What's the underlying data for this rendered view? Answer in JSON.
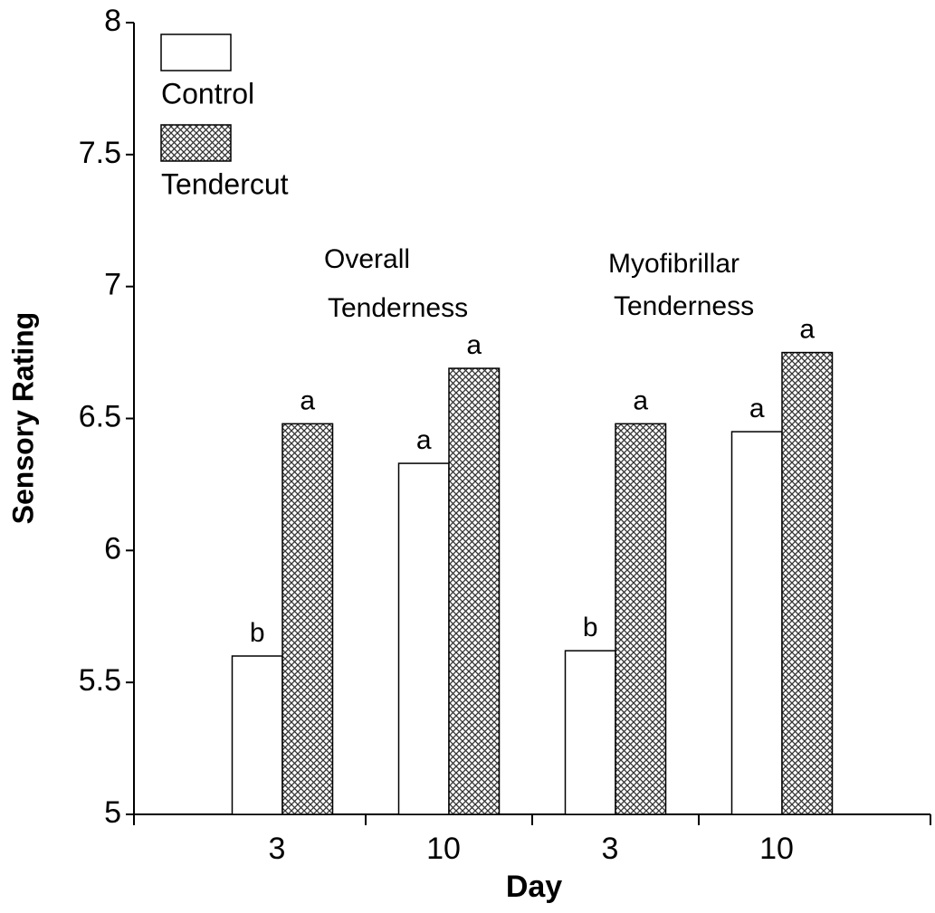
{
  "chart_data": {
    "type": "bar",
    "y_label": "Sensory Rating",
    "x_label": "Day",
    "categories": [
      "3",
      "10",
      "3",
      "10"
    ],
    "group_labels": [
      [
        "Overall",
        "Tenderness"
      ],
      [
        "Myofibrillar",
        "Tenderness"
      ]
    ],
    "series": [
      {
        "name": "Control",
        "color": "#ffffff",
        "pattern": "none",
        "values": [
          5.6,
          6.33,
          5.62,
          6.45
        ],
        "letters": [
          "b",
          "a",
          "b",
          "a"
        ]
      },
      {
        "name": "Tendercut",
        "color": "#ffffff",
        "pattern": "crosshatch",
        "values": [
          6.48,
          6.69,
          6.48,
          6.75
        ],
        "letters": [
          "a",
          "a",
          "a",
          "a"
        ]
      }
    ],
    "ylim": [
      5,
      8
    ],
    "yticks": [
      5,
      5.5,
      6,
      6.5,
      7,
      7.5,
      8
    ],
    "legend": "upper left"
  }
}
